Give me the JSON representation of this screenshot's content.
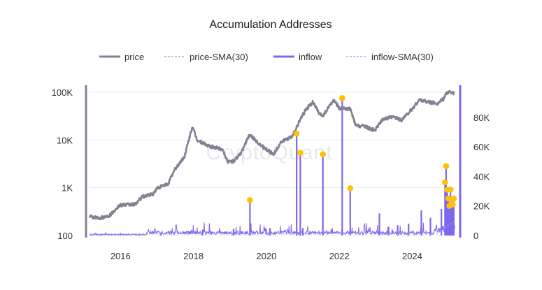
{
  "chart_data": {
    "type": "line",
    "title": "Accumulation Addresses",
    "watermark": "CryptoQuant",
    "colors": {
      "price": "#858194",
      "price_sma": "#9e9aa8",
      "inflow": "#7b68ee",
      "inflow_sma": "#a69cf4",
      "peak_marker": "#ffc107",
      "grid": "#ececec",
      "left_axis": "#858194",
      "right_axis": "#7b68ee"
    },
    "legend": [
      {
        "name": "price",
        "style": "solid"
      },
      {
        "name": "price-SMA(30)",
        "style": "dashed"
      },
      {
        "name": "inflow",
        "style": "solid"
      },
      {
        "name": "inflow-SMA(30)",
        "style": "dashed"
      }
    ],
    "x_axis": {
      "range": [
        2015.15,
        2025.2
      ],
      "ticks": [
        2016,
        2018,
        2020,
        2022,
        2024
      ],
      "tick_labels": [
        "2016",
        "2018",
        "2020",
        "2022",
        "2024"
      ]
    },
    "y_left": {
      "name": "price",
      "scale": "log",
      "range": [
        100,
        100000
      ],
      "ticks": [
        100,
        1000,
        10000,
        100000
      ],
      "tick_labels": [
        "100",
        "1K",
        "10K",
        "100K"
      ]
    },
    "y_right": {
      "name": "inflow",
      "scale": "linear",
      "range": [
        0,
        97000
      ],
      "ticks": [
        0,
        20000,
        40000,
        60000,
        80000
      ],
      "tick_labels": [
        "0",
        "20K",
        "40K",
        "60K",
        "80K"
      ]
    },
    "price_series": [
      [
        2015.15,
        250
      ],
      [
        2015.4,
        230
      ],
      [
        2015.7,
        260
      ],
      [
        2015.9,
        380
      ],
      [
        2016.0,
        430
      ],
      [
        2016.4,
        450
      ],
      [
        2016.6,
        650
      ],
      [
        2016.9,
        740
      ],
      [
        2017.0,
        980
      ],
      [
        2017.3,
        1200
      ],
      [
        2017.5,
        2500
      ],
      [
        2017.75,
        4400
      ],
      [
        2017.97,
        19000
      ],
      [
        2018.1,
        10000
      ],
      [
        2018.4,
        7500
      ],
      [
        2018.8,
        6400
      ],
      [
        2018.95,
        3400
      ],
      [
        2019.1,
        3600
      ],
      [
        2019.3,
        5200
      ],
      [
        2019.5,
        11500
      ],
      [
        2019.55,
        12500
      ],
      [
        2019.9,
        7200
      ],
      [
        2020.2,
        5000
      ],
      [
        2020.4,
        9000
      ],
      [
        2020.7,
        11500
      ],
      [
        2020.95,
        29000
      ],
      [
        2021.1,
        45000
      ],
      [
        2021.28,
        63000
      ],
      [
        2021.45,
        35000
      ],
      [
        2021.55,
        32000
      ],
      [
        2021.8,
        61000
      ],
      [
        2021.87,
        67000
      ],
      [
        2022.0,
        46000
      ],
      [
        2022.3,
        45000
      ],
      [
        2022.45,
        20000
      ],
      [
        2022.7,
        19500
      ],
      [
        2022.9,
        16500
      ],
      [
        2023.0,
        16700
      ],
      [
        2023.2,
        28000
      ],
      [
        2023.5,
        30000
      ],
      [
        2023.7,
        26000
      ],
      [
        2023.9,
        37000
      ],
      [
        2024.0,
        44000
      ],
      [
        2024.2,
        70000
      ],
      [
        2024.5,
        61000
      ],
      [
        2024.7,
        58000
      ],
      [
        2024.85,
        72000
      ],
      [
        2024.95,
        97000
      ],
      [
        2025.05,
        102000
      ],
      [
        2025.15,
        95000
      ]
    ],
    "inflow_baseline_max": 3000,
    "inflow_spikes": [
      {
        "x": 2017.1,
        "value": 2000
      },
      {
        "x": 2018.25,
        "value": 4000
      },
      {
        "x": 2019.1,
        "value": 4500
      },
      {
        "x": 2019.55,
        "value": 24000
      },
      {
        "x": 2020.1,
        "value": 5000
      },
      {
        "x": 2020.83,
        "value": 69000
      },
      {
        "x": 2020.93,
        "value": 56000
      },
      {
        "x": 2021.0,
        "value": 5000
      },
      {
        "x": 2021.55,
        "value": 55000
      },
      {
        "x": 2022.08,
        "value": 93000
      },
      {
        "x": 2022.3,
        "value": 32000
      },
      {
        "x": 2023.1,
        "value": 15000
      },
      {
        "x": 2023.35,
        "value": 6000
      },
      {
        "x": 2023.6,
        "value": 7000
      },
      {
        "x": 2023.9,
        "value": 8000
      },
      {
        "x": 2024.25,
        "value": 17000
      },
      {
        "x": 2024.5,
        "value": 12000
      },
      {
        "x": 2024.8,
        "value": 18000
      },
      {
        "x": 2024.9,
        "value": 36000
      },
      {
        "x": 2024.93,
        "value": 47000
      },
      {
        "x": 2024.96,
        "value": 31000
      },
      {
        "x": 2024.99,
        "value": 25000
      },
      {
        "x": 2025.02,
        "value": 20000
      },
      {
        "x": 2025.05,
        "value": 31000
      },
      {
        "x": 2025.08,
        "value": 24000
      },
      {
        "x": 2025.11,
        "value": 21000
      },
      {
        "x": 2025.14,
        "value": 25000
      }
    ],
    "peak_markers": [
      {
        "x": 2019.55,
        "value": 24000
      },
      {
        "x": 2020.83,
        "value": 69000
      },
      {
        "x": 2020.93,
        "value": 56000
      },
      {
        "x": 2021.55,
        "value": 55000
      },
      {
        "x": 2022.08,
        "value": 93000
      },
      {
        "x": 2022.3,
        "value": 32000
      },
      {
        "x": 2024.9,
        "value": 36000
      },
      {
        "x": 2024.93,
        "value": 47000
      },
      {
        "x": 2024.96,
        "value": 31000
      },
      {
        "x": 2024.99,
        "value": 25000
      },
      {
        "x": 2025.02,
        "value": 20000
      },
      {
        "x": 2025.05,
        "value": 31000
      },
      {
        "x": 2025.08,
        "value": 24000
      },
      {
        "x": 2025.11,
        "value": 21000
      },
      {
        "x": 2025.14,
        "value": 25000
      }
    ]
  }
}
